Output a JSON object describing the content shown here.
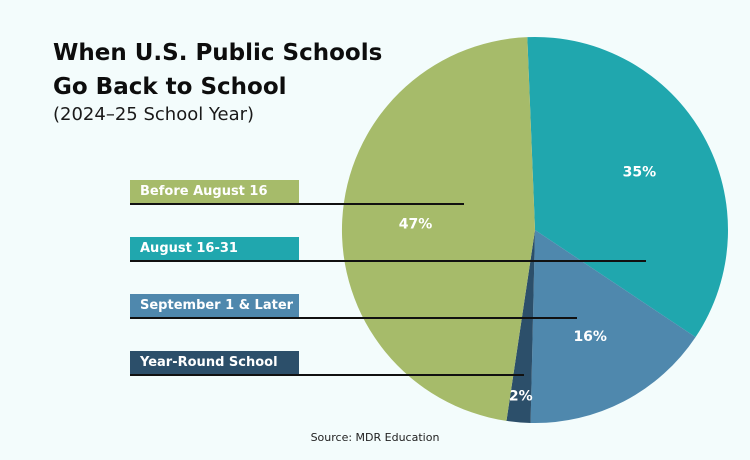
{
  "title_line1": "When U.S. Public Schools",
  "title_line2": "Go Back to School",
  "subtitle": "(2024–25 School Year)",
  "source": "Source: MDR Education",
  "chart_data": {
    "type": "pie",
    "title": "When U.S. Public Schools Go Back to School",
    "subtitle": "(2024–25 School Year)",
    "legend_placement": "left",
    "slices": [
      {
        "label": "August 16-31",
        "value": 35,
        "display": "35%",
        "color": "#20a7ae"
      },
      {
        "label": "September 1 & Later",
        "value": 16,
        "display": "16%",
        "color": "#4f88ad"
      },
      {
        "label": "Year-Round School",
        "value": 2,
        "display": "2%",
        "color": "#2c4f6a"
      },
      {
        "label": "Before August 16",
        "value": 47,
        "display": "47%",
        "color": "#a6bb6a"
      }
    ]
  }
}
